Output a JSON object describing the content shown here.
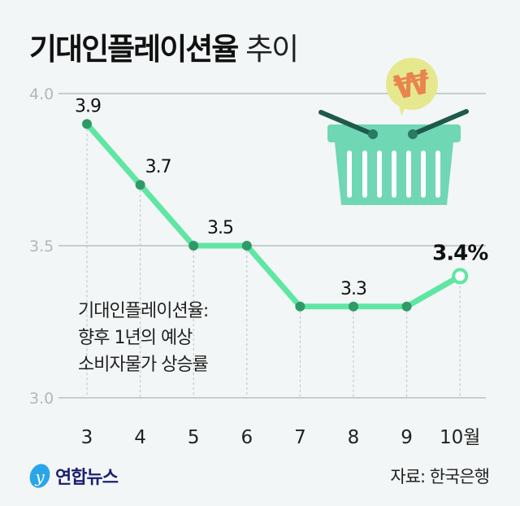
{
  "title": {
    "bold": "기대인플레이션율",
    "light": "추이"
  },
  "note": [
    "기대인플레이션율:",
    "향후 1년의 예상",
    "소비자물가 상승률"
  ],
  "source": "자료: 한국은행",
  "logo": "연합뉴스",
  "colors": {
    "line": "#5fe6a3",
    "grid": "#9aa6a8",
    "background": "#f3f6f6"
  },
  "chart_data": {
    "type": "line",
    "categories": [
      "3",
      "4",
      "5",
      "6",
      "7",
      "8",
      "9",
      "10월"
    ],
    "values": [
      3.9,
      3.7,
      3.5,
      3.5,
      3.3,
      3.3,
      3.3,
      3.4
    ],
    "data_labels": [
      {
        "index": 0,
        "text": "3.9"
      },
      {
        "index": 1,
        "text": "3.7"
      },
      {
        "index": 2.5,
        "text": "3.5"
      },
      {
        "index": 5,
        "text": "3.3"
      },
      {
        "index": 7,
        "text": "3.4%"
      }
    ],
    "yticks": [
      "4.0",
      "3.5",
      "3.0"
    ],
    "ylim": [
      3.0,
      4.0
    ],
    "grid": true
  }
}
